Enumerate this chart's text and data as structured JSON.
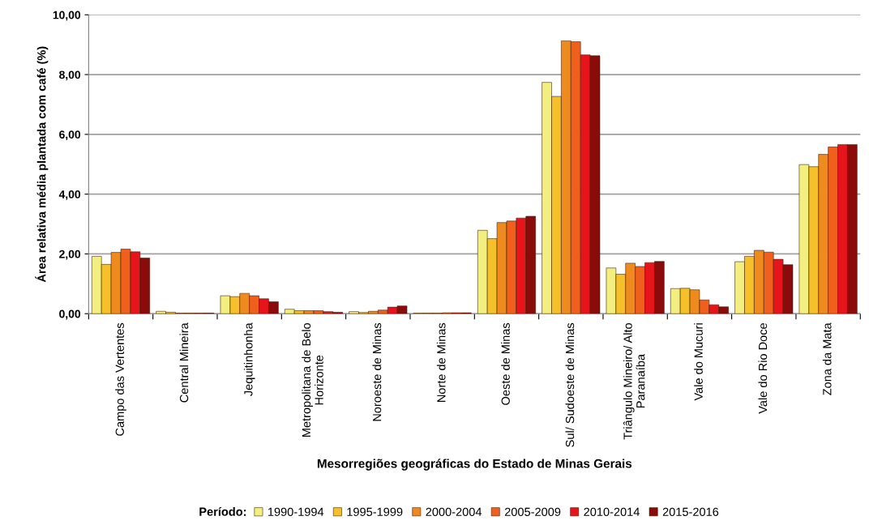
{
  "chart_data": {
    "type": "bar",
    "xlabel": "Mesorregiões geográficas do Estado de Minas Gerais",
    "ylabel": "Área relativa média plantada com café (%)",
    "legend_title": "Período:",
    "categories": [
      "Campo das Vertentes",
      "Central Mineira",
      "Jequitinhonha",
      "Metropolitana de Belo Horizonte",
      "Noroeste de Minas",
      "Norte de Minas",
      "Oeste de Minas",
      "Sul/ Sudoeste de Minas",
      "Triângulo Mineiro/ Alto Paranaíba",
      "Vale do Mucuri",
      "Vale do Rio Doce",
      "Zona da Mata"
    ],
    "series": [
      {
        "name": "1990-1994",
        "color": "#f2ee80",
        "values": [
          1.92,
          0.08,
          0.6,
          0.15,
          0.07,
          0.02,
          2.79,
          7.74,
          1.53,
          0.84,
          1.74,
          4.99
        ]
      },
      {
        "name": "1995-1999",
        "color": "#f5c02a",
        "values": [
          1.65,
          0.05,
          0.57,
          0.1,
          0.04,
          0.02,
          2.51,
          7.27,
          1.32,
          0.85,
          1.92,
          4.92
        ]
      },
      {
        "name": "2000-2004",
        "color": "#ef8a1f",
        "values": [
          2.05,
          0.02,
          0.68,
          0.1,
          0.08,
          0.02,
          3.05,
          9.13,
          1.69,
          0.8,
          2.12,
          5.33
        ]
      },
      {
        "name": "2005-2009",
        "color": "#f0601c",
        "values": [
          2.16,
          0.02,
          0.6,
          0.1,
          0.12,
          0.03,
          3.1,
          9.1,
          1.58,
          0.46,
          2.06,
          5.58
        ]
      },
      {
        "name": "2010-2014",
        "color": "#e8141c",
        "values": [
          2.07,
          0.02,
          0.5,
          0.07,
          0.22,
          0.03,
          3.2,
          8.66,
          1.71,
          0.3,
          1.82,
          5.66
        ]
      },
      {
        "name": "2015-2016",
        "color": "#8b0a0a",
        "values": [
          1.86,
          0.02,
          0.4,
          0.05,
          0.26,
          0.03,
          3.26,
          8.63,
          1.75,
          0.23,
          1.64,
          5.66
        ]
      }
    ],
    "ylim": [
      0,
      10
    ],
    "yticks": [
      {
        "value": 0,
        "label": "0,00"
      },
      {
        "value": 2,
        "label": "2,00"
      },
      {
        "value": 4,
        "label": "4,00"
      },
      {
        "value": 6,
        "label": "6,00"
      },
      {
        "value": 8,
        "label": "8,00"
      },
      {
        "value": 10,
        "label": "10,00"
      }
    ],
    "grid": "y",
    "legend": "bottom"
  }
}
